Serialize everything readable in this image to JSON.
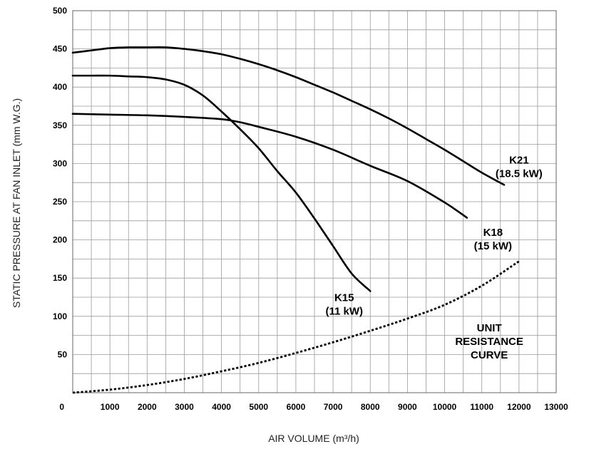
{
  "chart_data": {
    "type": "line",
    "xlabel": "AIR VOLUME (m³/h)",
    "ylabel": "STATIC PRESSURE AT FAN INLET (mm W.G.)",
    "xlim": [
      0,
      13000
    ],
    "ylim": [
      0,
      500
    ],
    "x_ticks": [
      "0",
      "1000",
      "2000",
      "3000",
      "4000",
      "5000",
      "6000",
      "7000",
      "8000",
      "9000",
      "10000",
      "11000",
      "12000",
      "13000"
    ],
    "y_ticks": [
      "50",
      "100",
      "150",
      "200",
      "250",
      "300",
      "350",
      "400",
      "450",
      "500"
    ],
    "grid": true,
    "grid_x_step": 500,
    "grid_y_step": 25,
    "series": [
      {
        "name": "K15 (11 kW)",
        "label_lines": [
          "K15",
          "(11 kW)"
        ],
        "style": "solid",
        "points": [
          [
            0,
            415
          ],
          [
            500,
            415
          ],
          [
            1000,
            415
          ],
          [
            1500,
            414
          ],
          [
            2000,
            413
          ],
          [
            2500,
            410
          ],
          [
            3000,
            403
          ],
          [
            3500,
            389
          ],
          [
            4000,
            368
          ],
          [
            4500,
            345
          ],
          [
            5000,
            320
          ],
          [
            5500,
            290
          ],
          [
            6000,
            262
          ],
          [
            6500,
            228
          ],
          [
            7000,
            192
          ],
          [
            7500,
            156
          ],
          [
            8000,
            133
          ]
        ]
      },
      {
        "name": "K18 (15 kW)",
        "label_lines": [
          "K18",
          "(15 kW)"
        ],
        "style": "solid",
        "points": [
          [
            0,
            365
          ],
          [
            1000,
            364
          ],
          [
            2000,
            363
          ],
          [
            3000,
            361
          ],
          [
            4000,
            358
          ],
          [
            4500,
            354
          ],
          [
            5000,
            348
          ],
          [
            6000,
            335
          ],
          [
            7000,
            318
          ],
          [
            8000,
            297
          ],
          [
            9000,
            277
          ],
          [
            10000,
            249
          ],
          [
            10600,
            229
          ]
        ]
      },
      {
        "name": "K21 (18.5 kW)",
        "label_lines": [
          "K21",
          "(18.5 kW)"
        ],
        "style": "solid",
        "points": [
          [
            0,
            445
          ],
          [
            500,
            448
          ],
          [
            1000,
            451
          ],
          [
            1500,
            452
          ],
          [
            2000,
            452
          ],
          [
            2500,
            452
          ],
          [
            3000,
            450
          ],
          [
            3500,
            447
          ],
          [
            4000,
            443
          ],
          [
            4500,
            437
          ],
          [
            5000,
            430
          ],
          [
            5500,
            422
          ],
          [
            6000,
            413
          ],
          [
            6500,
            403
          ],
          [
            7000,
            393
          ],
          [
            7500,
            382
          ],
          [
            8000,
            371
          ],
          [
            8500,
            359
          ],
          [
            9000,
            346
          ],
          [
            9500,
            332
          ],
          [
            10000,
            318
          ],
          [
            10500,
            303
          ],
          [
            11000,
            288
          ],
          [
            11600,
            272
          ]
        ]
      },
      {
        "name": "UNIT RESISTANCE CURVE",
        "label_lines": [
          "UNIT",
          "RESISTANCE",
          "CURVE"
        ],
        "style": "dotted",
        "points": [
          [
            0,
            0
          ],
          [
            1000,
            4
          ],
          [
            2000,
            10
          ],
          [
            3000,
            18
          ],
          [
            4000,
            28
          ],
          [
            5000,
            39
          ],
          [
            6000,
            52
          ],
          [
            7000,
            66
          ],
          [
            8000,
            81
          ],
          [
            9000,
            97
          ],
          [
            10000,
            115
          ],
          [
            11000,
            140
          ],
          [
            12000,
            172
          ]
        ]
      }
    ],
    "label_positions_data": {
      "K15 (11 kW)": [
        7300,
        120
      ],
      "K18 (15 kW)": [
        11300,
        205
      ],
      "K21 (18.5 kW)": [
        12000,
        300
      ],
      "UNIT RESISTANCE CURVE": [
        11200,
        80
      ]
    }
  }
}
